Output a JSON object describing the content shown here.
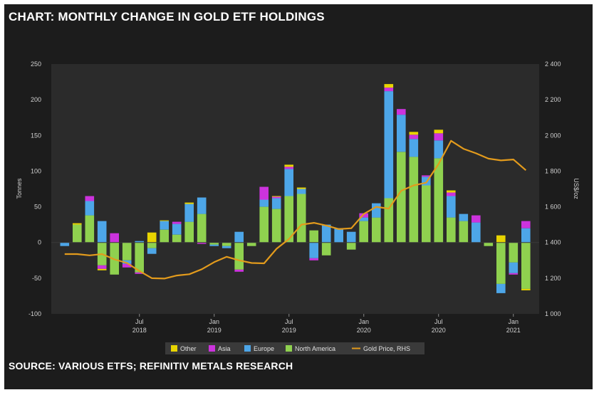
{
  "title": "CHART: MONTHLY CHANGE IN GOLD ETF HOLDINGS",
  "source": "SOURCE: VARIOUS ETFS; REFINITIV METALS RESEARCH",
  "colors": {
    "Other": "#e8d400",
    "Asia": "#cc33dd",
    "Europe": "#4da6e8",
    "North America": "#8fd14f",
    "Gold Price, RHS": "#e39b1c",
    "frame": "#1c1c1c",
    "plot": "#2b2b2b"
  },
  "chart_data": {
    "type": "bar",
    "stacked": true,
    "ylabel": "Tonnes",
    "y2label": "US$/oz",
    "ylim": [
      -100,
      250
    ],
    "y2lim": [
      1000,
      2400
    ],
    "yticks": [
      -100,
      -50,
      0,
      50,
      100,
      150,
      200,
      250
    ],
    "y2ticks": [
      "1 000",
      "1 200",
      "1 400",
      "1 600",
      "1 800",
      "2 000",
      "2 200",
      "2 400"
    ],
    "xtick_labels": [
      {
        "month": "Jul",
        "year": "2018"
      },
      {
        "month": "Jan",
        "year": "2019"
      },
      {
        "month": "Jul",
        "year": "2019"
      },
      {
        "month": "Jan",
        "year": "2020"
      },
      {
        "month": "Jul",
        "year": "2020"
      },
      {
        "month": "Jan",
        "year": "2021"
      }
    ],
    "categories": [
      "Jan 2018",
      "Feb 2018",
      "Mar 2018",
      "Apr 2018",
      "May 2018",
      "Jun 2018",
      "Jul 2018",
      "Aug 2018",
      "Sep 2018",
      "Oct 2018",
      "Nov 2018",
      "Dec 2018",
      "Jan 2019",
      "Feb 2019",
      "Mar 2019",
      "Apr 2019",
      "May 2019",
      "Jun 2019",
      "Jul 2019",
      "Aug 2019",
      "Sep 2019",
      "Oct 2019",
      "Nov 2019",
      "Dec 2019",
      "Jan 2020",
      "Feb 2020",
      "Mar 2020",
      "Apr 2020",
      "May 2020",
      "Jun 2020",
      "Jul 2020",
      "Aug 2020",
      "Sep 2020",
      "Oct 2020",
      "Nov 2020",
      "Dec 2020",
      "Jan 2021",
      "Feb 2021"
    ],
    "series": [
      {
        "name": "North America",
        "values": [
          0,
          25,
          38,
          -32,
          -45,
          -25,
          -42,
          -8,
          18,
          11,
          29,
          40,
          -3,
          -5,
          -38,
          -5,
          50,
          47,
          65,
          68,
          17,
          -18,
          0,
          -10,
          30,
          35,
          62,
          127,
          120,
          80,
          118,
          35,
          30,
          0,
          -5,
          -58,
          -28,
          -65
        ]
      },
      {
        "name": "Europe",
        "values": [
          -5,
          0,
          20,
          30,
          0,
          -5,
          2,
          -8,
          12,
          15,
          25,
          23,
          -2,
          -3,
          15,
          0,
          10,
          15,
          38,
          7,
          -22,
          25,
          20,
          15,
          5,
          20,
          150,
          52,
          25,
          12,
          25,
          30,
          10,
          28,
          0,
          -13,
          -15,
          20
        ]
      },
      {
        "name": "Asia",
        "values": [
          0,
          0,
          7,
          -5,
          13,
          -5,
          -2,
          0,
          0,
          3,
          0,
          -2,
          0,
          0,
          -3,
          0,
          18,
          2,
          3,
          0,
          -3,
          0,
          0,
          0,
          6,
          0,
          5,
          8,
          6,
          2,
          10,
          5,
          0,
          10,
          0,
          0,
          -2,
          10
        ]
      },
      {
        "name": "Other",
        "values": [
          0,
          2,
          0,
          -2,
          0,
          0,
          0,
          14,
          1,
          0,
          2,
          0,
          0,
          0,
          0,
          0,
          0,
          1,
          3,
          2,
          0,
          0,
          0,
          0,
          0,
          0,
          5,
          0,
          4,
          0,
          5,
          3,
          0,
          0,
          0,
          10,
          0,
          -2
        ]
      }
    ],
    "line": {
      "name": "Gold Price, RHS",
      "values": [
        1335,
        1335,
        1328,
        1335,
        1305,
        1285,
        1240,
        1200,
        1198,
        1215,
        1222,
        1250,
        1290,
        1320,
        1300,
        1285,
        1283,
        1365,
        1420,
        1500,
        1510,
        1495,
        1475,
        1480,
        1560,
        1600,
        1590,
        1690,
        1720,
        1735,
        1840,
        1970,
        1925,
        1900,
        1870,
        1860,
        1865,
        1805
      ]
    },
    "legend_position": "bottom-center",
    "grid": false
  }
}
